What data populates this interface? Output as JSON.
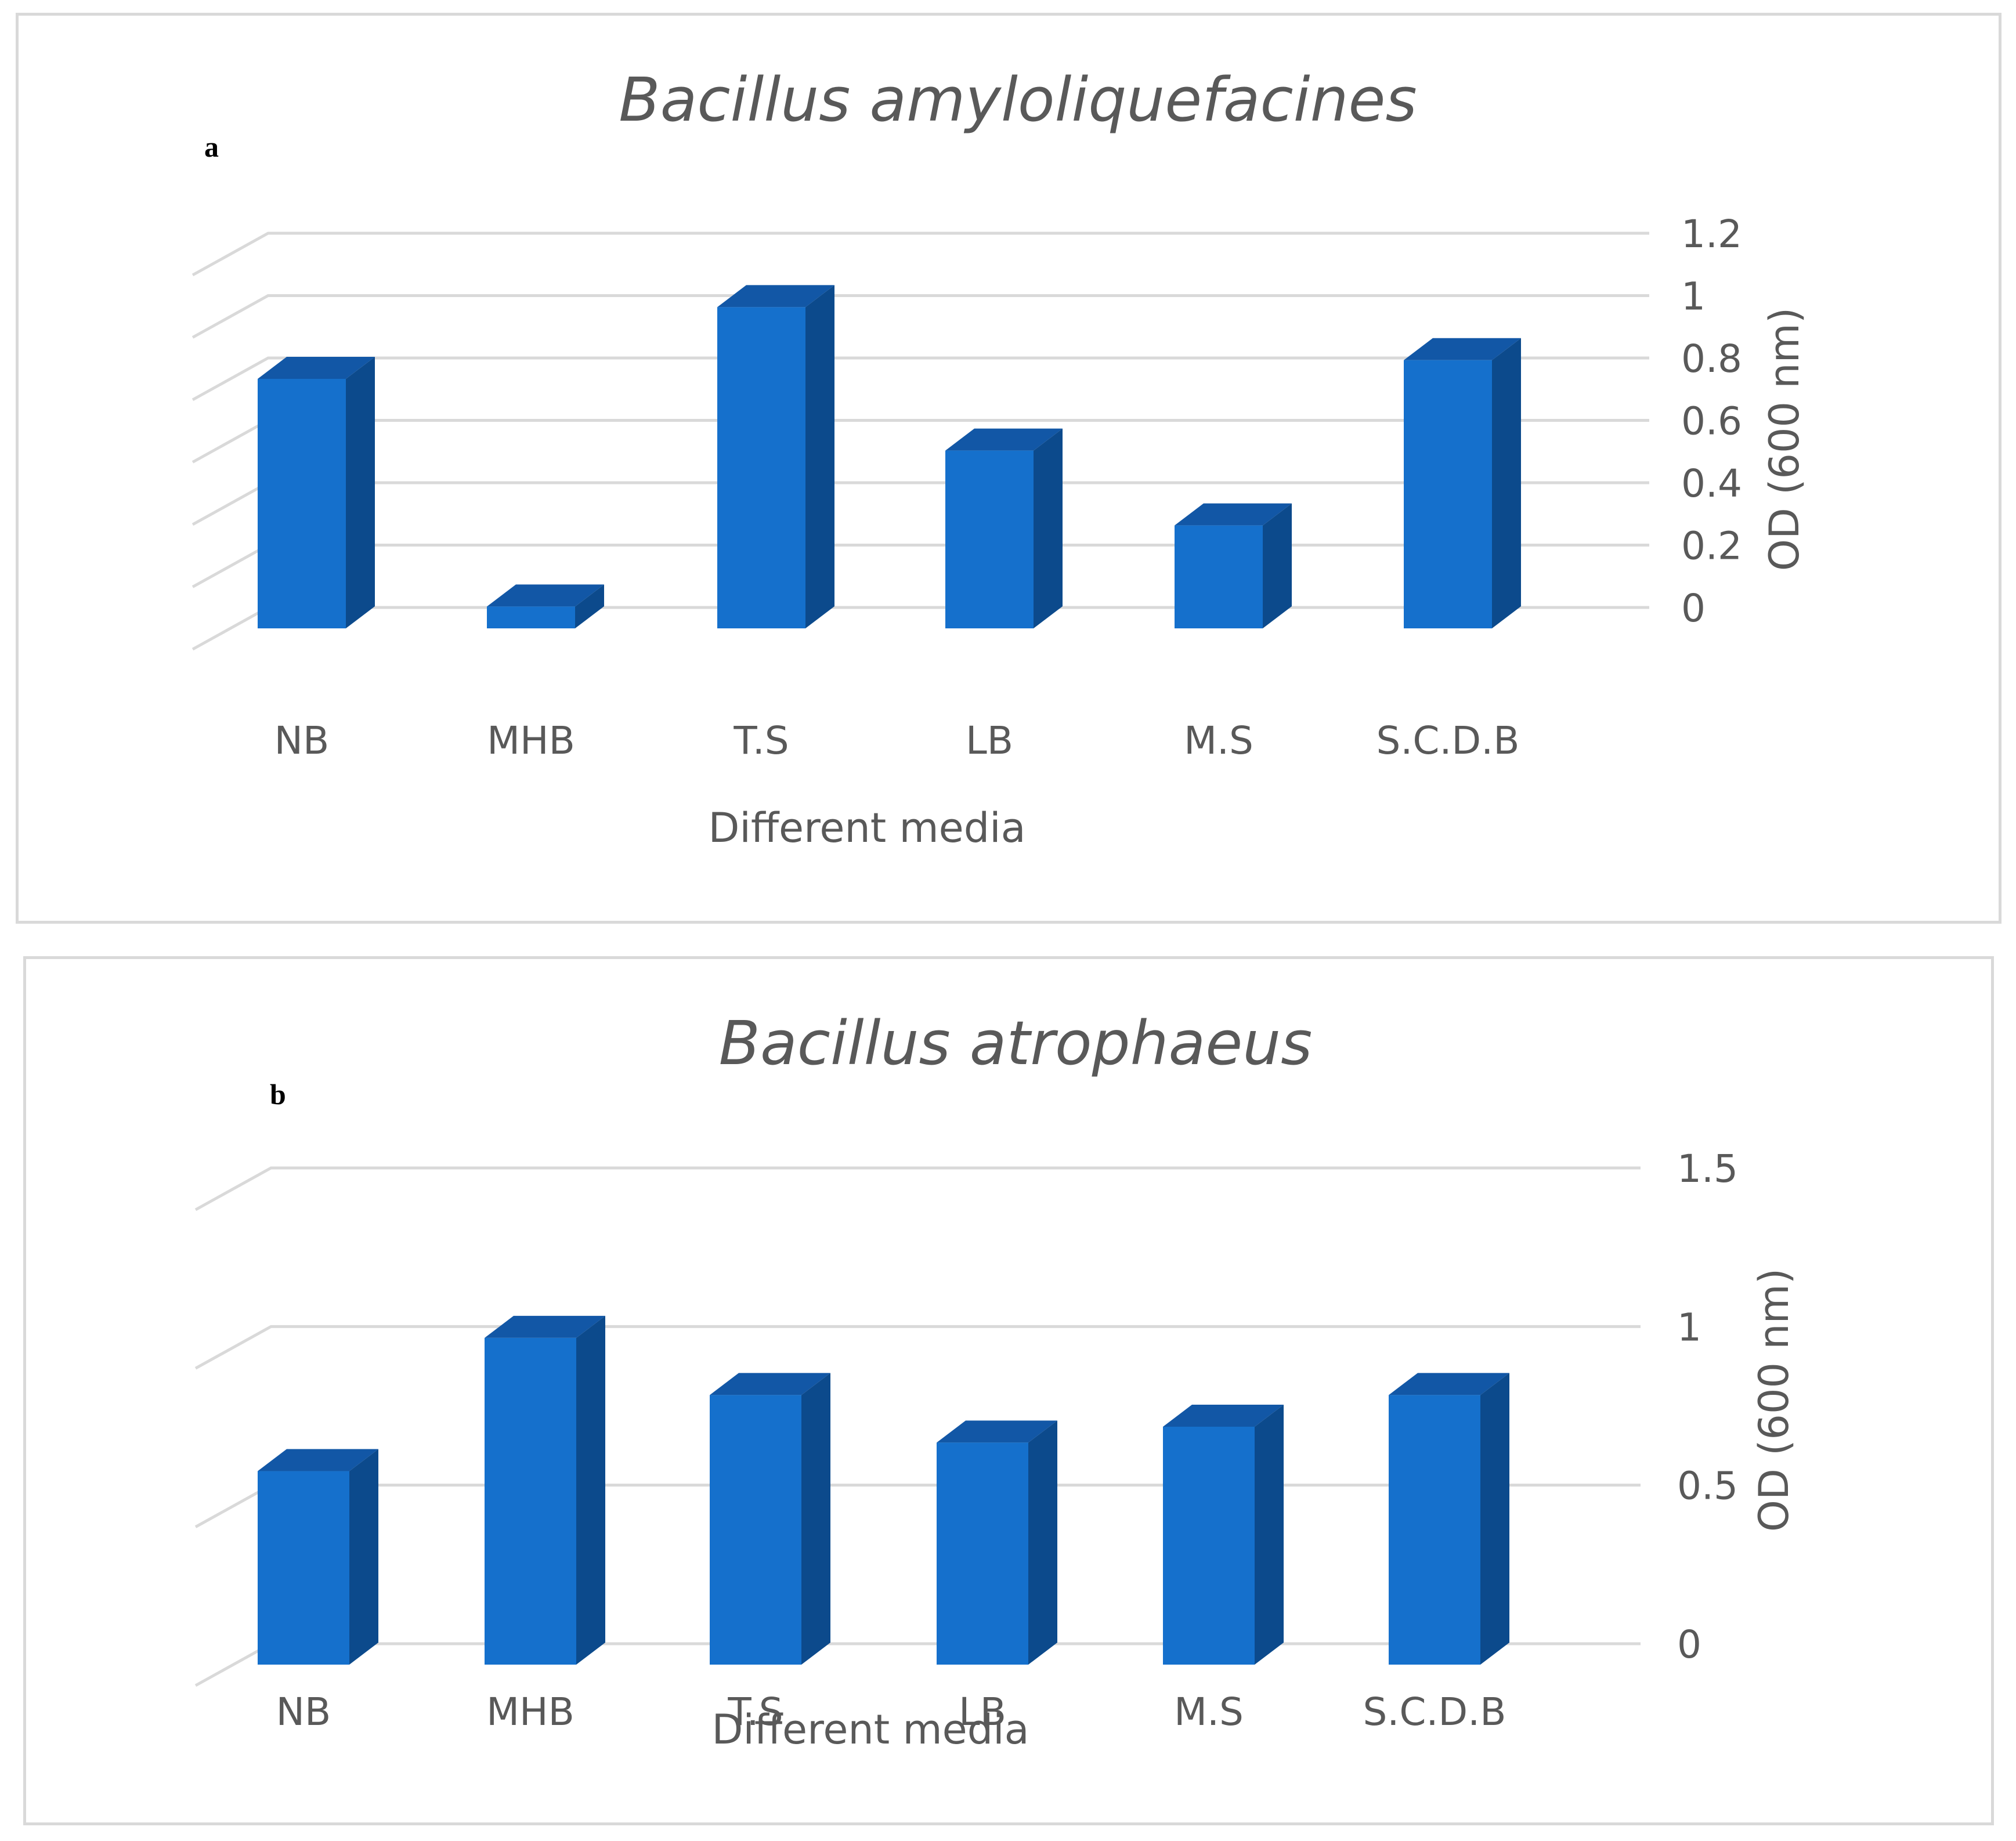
{
  "chart_data": [
    {
      "type": "bar",
      "panel_label": "a",
      "title": "Bacillus amyloliquefacines",
      "xlabel": "Different media",
      "ylabel": "OD (600 nm)",
      "ylim": [
        0,
        1.2
      ],
      "yticks": [
        "0",
        "0.2",
        "0.4",
        "0.6",
        "0.8",
        "1",
        "1.2"
      ],
      "categories": [
        "NB",
        "MHB",
        "T.S",
        "LB",
        "M.S",
        "S.C.D.B"
      ],
      "values": [
        0.8,
        0.07,
        1.03,
        0.57,
        0.33,
        0.86
      ],
      "grid": true,
      "legend": "none",
      "colors": {
        "bar_front": "#1570CC",
        "bar_side": "#0C4A8C",
        "bar_top": "#1257A6"
      }
    },
    {
      "type": "bar",
      "panel_label": "b",
      "title": "Bacillus atrophaeus",
      "xlabel": "Different media",
      "ylabel": "OD (600 nm)",
      "ylim": [
        0,
        1.5
      ],
      "yticks": [
        "0",
        "0.5",
        "1",
        "1.5"
      ],
      "categories": [
        "NB",
        "MHB",
        "T.S",
        "LB",
        "M.S",
        "S.C.D.B"
      ],
      "values": [
        0.61,
        1.03,
        0.85,
        0.7,
        0.75,
        0.85
      ],
      "grid": true,
      "legend": "none",
      "colors": {
        "bar_front": "#1570CC",
        "bar_side": "#0C4A8C",
        "bar_top": "#1257A6"
      }
    }
  ]
}
